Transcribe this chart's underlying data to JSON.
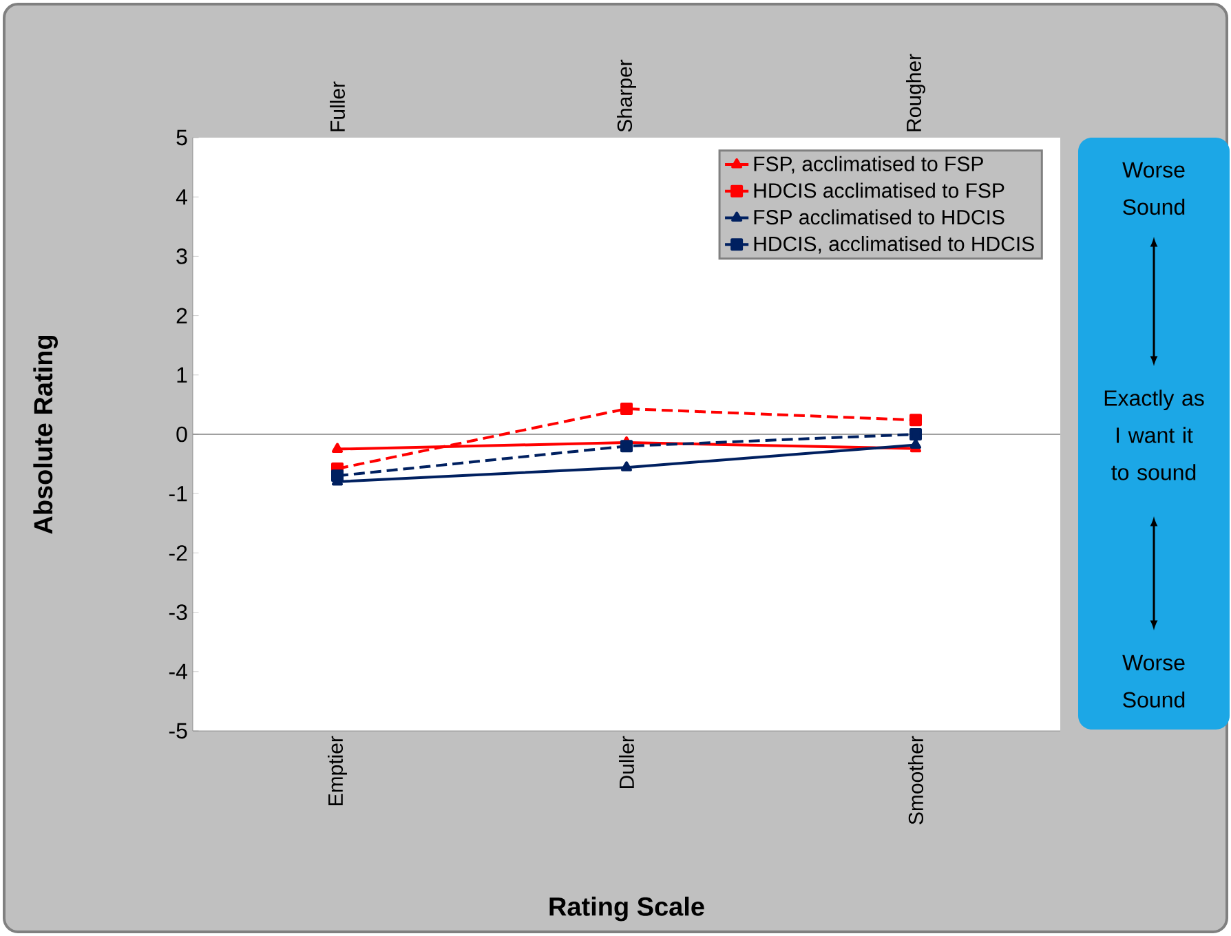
{
  "chart_data": {
    "type": "line",
    "xlabel": "Rating Scale",
    "ylabel": "Absolute Rating",
    "categories": [
      "Emptier",
      "Duller",
      "Smoother"
    ],
    "series": [
      {
        "name": "FSP, acclimatised to FSP",
        "color": "#ff0000",
        "marker": "triangle",
        "line_style": "solid",
        "values": [
          -0.25,
          -0.14,
          -0.24
        ]
      },
      {
        "name": "HDCIS acclimatised to FSP",
        "color": "#ff0000",
        "marker": "square",
        "line_style": "dashed",
        "values": [
          -0.58,
          0.43,
          0.24
        ]
      },
      {
        "name": "FSP acclimatised to HDCIS",
        "color": "#002060",
        "marker": "triangle",
        "line_style": "solid",
        "values": [
          -0.8,
          -0.56,
          -0.18
        ]
      },
      {
        "name": "HDCIS, acclimatised to HDCIS",
        "color": "#002060",
        "marker": "square",
        "line_style": "dashed",
        "values": [
          -0.7,
          -0.2,
          0.0
        ]
      }
    ],
    "ylim": [
      -5,
      5
    ],
    "yticks": [
      -5,
      -4,
      -3,
      -2,
      -1,
      0,
      1,
      2,
      3,
      4,
      5
    ],
    "ref_lines": [
      {
        "axis": "y",
        "value": 0,
        "color": "#808080"
      }
    ],
    "legend": "top right",
    "annotations": [
      "Fuller",
      "Sharper",
      "Rougher",
      "Worse Sound",
      "Exactly as I want it to sound",
      "Worse Sound"
    ]
  }
}
